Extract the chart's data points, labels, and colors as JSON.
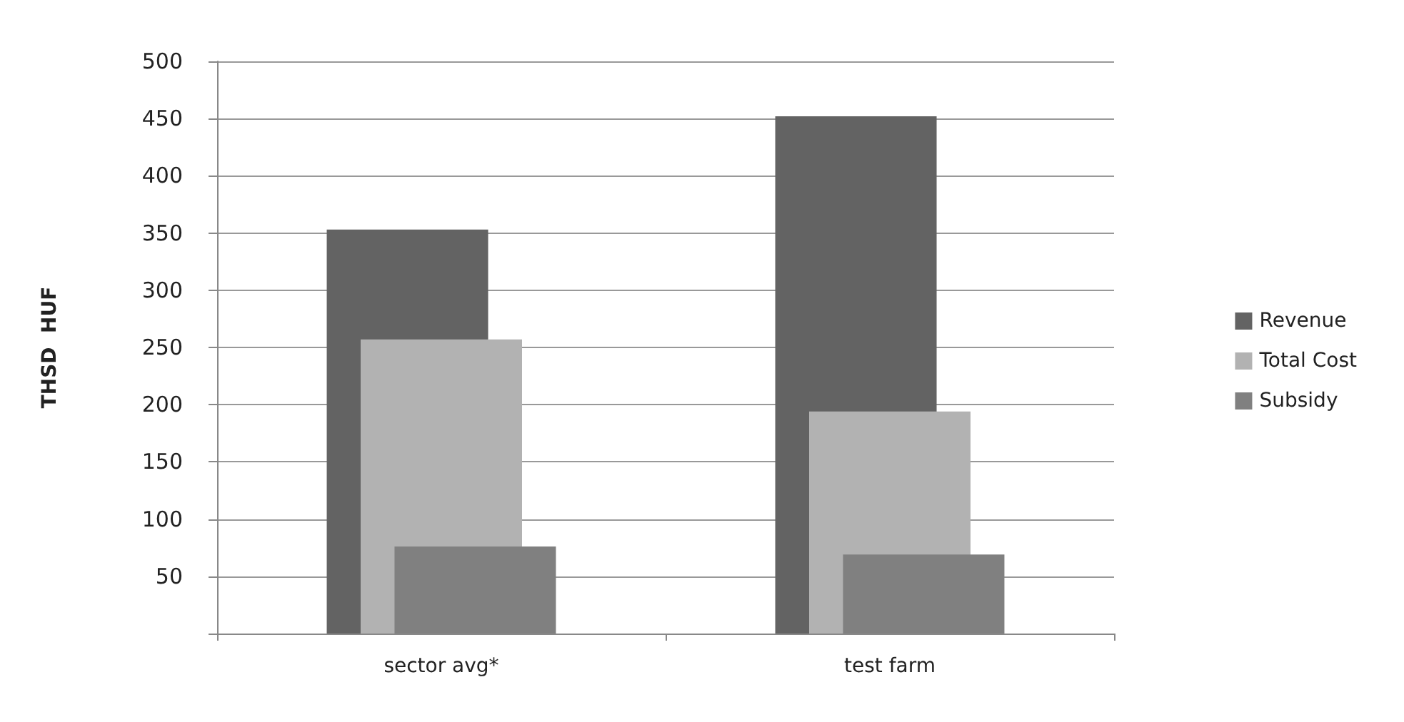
{
  "chart_data": {
    "type": "bar",
    "ylabel": "THSD  HUF",
    "categories": [
      "sector avg*",
      "test farm"
    ],
    "series": [
      {
        "name": "Revenue",
        "color": "#636363",
        "values": [
          353,
          452
        ]
      },
      {
        "name": "Total Cost",
        "color": "#b2b2b2",
        "values": [
          257,
          194
        ]
      },
      {
        "name": "Subsidy",
        "color": "#808080",
        "values": [
          76,
          69
        ]
      }
    ],
    "ylim": [
      0,
      500
    ],
    "yticks": [
      {
        "value": 0,
        "label": null
      },
      50,
      100,
      150,
      200,
      250,
      300,
      350,
      400,
      450,
      500
    ],
    "grid": "y",
    "legend": "right"
  }
}
